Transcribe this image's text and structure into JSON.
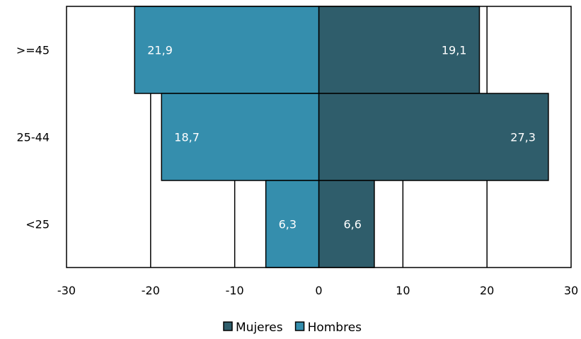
{
  "chart_data": {
    "type": "bar",
    "orientation": "horizontal",
    "layout": "population-pyramid",
    "categories": [
      ">=45",
      "25-44",
      "<25"
    ],
    "series": [
      {
        "name": "Mujeres",
        "color": "#2f5d6b",
        "values": [
          19.1,
          27.3,
          6.6
        ],
        "labels": [
          "19,1",
          "27,3",
          "6,6"
        ]
      },
      {
        "name": "Hombres",
        "color": "#358ead",
        "values": [
          -21.9,
          -18.7,
          -6.3
        ],
        "labels": [
          "21,9",
          "18,7",
          "6,3"
        ]
      }
    ],
    "xlim": [
      -30,
      30
    ],
    "xticks": [
      -30,
      -20,
      -10,
      0,
      10,
      20,
      30
    ],
    "xtick_labels": [
      "-30",
      "-20",
      "-10",
      "0",
      "10",
      "20",
      "30"
    ],
    "grid": "vertical",
    "legend_position": "bottom",
    "title": "",
    "xlabel": "",
    "ylabel": ""
  }
}
